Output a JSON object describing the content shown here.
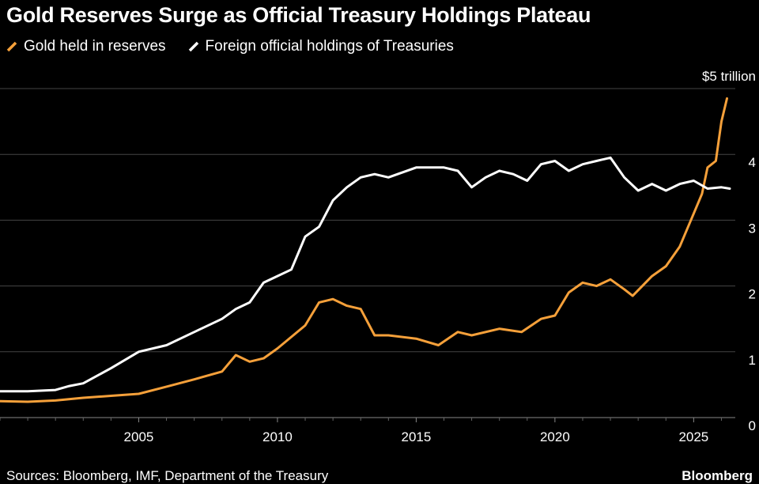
{
  "title": "Gold Reserves Surge as Official Treasury Holdings Plateau",
  "source": "Sources: Bloomberg, IMF, Department of the Treasury",
  "brand": "Bloomberg",
  "colors": {
    "gold": "#f5a03a",
    "treasuries": "#ffffff",
    "grid": "#444444",
    "background": "#000000"
  },
  "chart_data": {
    "type": "line",
    "title": "Gold Reserves Surge as Official Treasury Holdings Plateau",
    "xlabel": "",
    "ylabel": "",
    "y_unit_label": "$5 trillion",
    "xlim": [
      2000.0,
      2026.5
    ],
    "ylim": [
      0,
      5
    ],
    "xticks": [
      2005,
      2010,
      2015,
      2020,
      2025
    ],
    "xtick_labels": [
      "2005",
      "2010",
      "2015",
      "2020",
      "2025"
    ],
    "yticks": [
      0,
      1,
      2,
      3,
      4,
      5
    ],
    "ytick_labels": [
      "0",
      "1",
      "2",
      "3",
      "4",
      "$5 trillion"
    ],
    "series": [
      {
        "name": "Gold held in reserves",
        "color": "#f5a03a",
        "points": [
          [
            2000.0,
            0.25
          ],
          [
            2001.0,
            0.24
          ],
          [
            2002.0,
            0.26
          ],
          [
            2003.0,
            0.3
          ],
          [
            2004.0,
            0.33
          ],
          [
            2005.0,
            0.36
          ],
          [
            2006.0,
            0.47
          ],
          [
            2007.0,
            0.58
          ],
          [
            2008.0,
            0.7
          ],
          [
            2008.5,
            0.95
          ],
          [
            2009.0,
            0.85
          ],
          [
            2009.5,
            0.9
          ],
          [
            2010.0,
            1.05
          ],
          [
            2011.0,
            1.4
          ],
          [
            2011.5,
            1.75
          ],
          [
            2012.0,
            1.8
          ],
          [
            2012.5,
            1.7
          ],
          [
            2013.0,
            1.65
          ],
          [
            2013.5,
            1.25
          ],
          [
            2014.0,
            1.25
          ],
          [
            2015.0,
            1.2
          ],
          [
            2015.8,
            1.1
          ],
          [
            2016.5,
            1.3
          ],
          [
            2017.0,
            1.25
          ],
          [
            2018.0,
            1.35
          ],
          [
            2018.8,
            1.3
          ],
          [
            2019.5,
            1.5
          ],
          [
            2020.0,
            1.55
          ],
          [
            2020.5,
            1.9
          ],
          [
            2021.0,
            2.05
          ],
          [
            2021.5,
            2.0
          ],
          [
            2022.0,
            2.1
          ],
          [
            2022.5,
            1.95
          ],
          [
            2022.8,
            1.85
          ],
          [
            2023.5,
            2.15
          ],
          [
            2024.0,
            2.3
          ],
          [
            2024.5,
            2.6
          ],
          [
            2025.0,
            3.1
          ],
          [
            2025.3,
            3.4
          ],
          [
            2025.5,
            3.8
          ],
          [
            2025.8,
            3.9
          ],
          [
            2026.0,
            4.5
          ],
          [
            2026.2,
            4.85
          ]
        ]
      },
      {
        "name": "Foreign official holdings of Treasuries",
        "color": "#ffffff",
        "points": [
          [
            2000.0,
            0.4
          ],
          [
            2001.0,
            0.4
          ],
          [
            2002.0,
            0.42
          ],
          [
            2002.5,
            0.48
          ],
          [
            2003.0,
            0.52
          ],
          [
            2004.0,
            0.75
          ],
          [
            2005.0,
            1.0
          ],
          [
            2006.0,
            1.1
          ],
          [
            2007.0,
            1.3
          ],
          [
            2008.0,
            1.5
          ],
          [
            2008.5,
            1.65
          ],
          [
            2009.0,
            1.75
          ],
          [
            2009.5,
            2.05
          ],
          [
            2010.0,
            2.15
          ],
          [
            2010.5,
            2.25
          ],
          [
            2011.0,
            2.75
          ],
          [
            2011.5,
            2.9
          ],
          [
            2012.0,
            3.3
          ],
          [
            2012.5,
            3.5
          ],
          [
            2013.0,
            3.65
          ],
          [
            2013.5,
            3.7
          ],
          [
            2014.0,
            3.65
          ],
          [
            2015.0,
            3.8
          ],
          [
            2016.0,
            3.8
          ],
          [
            2016.5,
            3.75
          ],
          [
            2017.0,
            3.5
          ],
          [
            2017.5,
            3.65
          ],
          [
            2018.0,
            3.75
          ],
          [
            2018.5,
            3.7
          ],
          [
            2019.0,
            3.6
          ],
          [
            2019.5,
            3.85
          ],
          [
            2020.0,
            3.9
          ],
          [
            2020.5,
            3.75
          ],
          [
            2021.0,
            3.85
          ],
          [
            2021.5,
            3.9
          ],
          [
            2022.0,
            3.95
          ],
          [
            2022.5,
            3.65
          ],
          [
            2023.0,
            3.45
          ],
          [
            2023.5,
            3.55
          ],
          [
            2024.0,
            3.45
          ],
          [
            2024.5,
            3.55
          ],
          [
            2025.0,
            3.6
          ],
          [
            2025.5,
            3.48
          ],
          [
            2026.0,
            3.5
          ],
          [
            2026.3,
            3.48
          ]
        ]
      }
    ],
    "legend_position": "top-left",
    "grid": true
  }
}
